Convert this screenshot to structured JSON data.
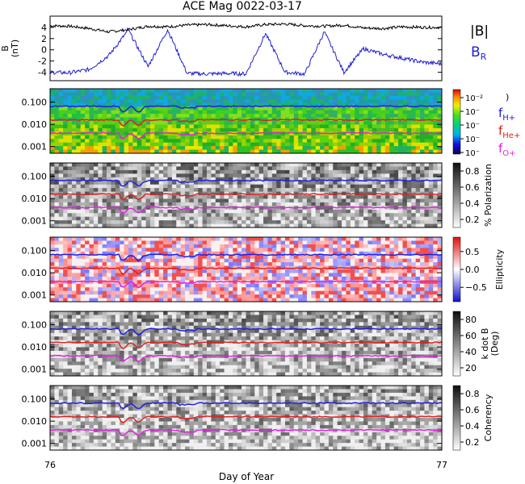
{
  "title": "ACE Mag 0022-03-17",
  "colors": {
    "total_field": "#000000",
    "radial_field": "#1f1fd0",
    "h_plus": "#2020e0",
    "he_plus": "#e02020",
    "o_plus": "#e020e0",
    "axis": "#000000"
  },
  "chart_data": [
    {
      "type": "line",
      "panel": "magnetic-field",
      "ylabel": "B (nT)",
      "ylabel_line1": "B",
      "ylabel_line2": "(nT)",
      "yticks": [
        4,
        2,
        0,
        -2,
        -4
      ],
      "ylim": [
        -5.5,
        6
      ],
      "xlim": [
        76,
        77
      ],
      "legend": [
        "|B|",
        "B"
      ],
      "legend_sub": "R",
      "series": [
        {
          "name": "|B|",
          "x": [
            76.0,
            76.05,
            76.1,
            76.15,
            76.2,
            76.25,
            76.3,
            76.35,
            76.4,
            76.45,
            76.5,
            76.55,
            76.6,
            76.65,
            76.7,
            76.75,
            76.8,
            76.85,
            76.9,
            76.95,
            77.0
          ],
          "values": [
            4.3,
            4.2,
            3.8,
            3.2,
            3.6,
            4.2,
            4.1,
            4.4,
            4.5,
            4.3,
            4.1,
            4.5,
            4.6,
            4.3,
            4.2,
            4.4,
            3.9,
            3.8,
            4.1,
            4.0,
            4.0
          ]
        },
        {
          "name": "B_R",
          "x": [
            76.0,
            76.05,
            76.1,
            76.15,
            76.2,
            76.25,
            76.3,
            76.35,
            76.4,
            76.45,
            76.5,
            76.55,
            76.6,
            76.65,
            76.7,
            76.75,
            76.8,
            76.85,
            76.9,
            76.95,
            77.0
          ],
          "values": [
            -4.0,
            -4.1,
            -3.5,
            -1.0,
            3.5,
            -3.0,
            3.6,
            -4.2,
            -4.3,
            -4.2,
            -4.3,
            2.9,
            -4.0,
            -4.3,
            3.2,
            -4.0,
            0.2,
            -0.8,
            -1.5,
            -2.2,
            -2.5
          ]
        }
      ]
    },
    {
      "type": "heatmap",
      "panel": "power",
      "yticks": [
        "0.100",
        "0.010",
        "0.001"
      ],
      "ytick_values": [
        0.1,
        0.01,
        0.001
      ],
      "colorbar": "rainbow",
      "colorbar_labels": [
        "10⁻²",
        "10⁻",
        "10⁻",
        "10⁻",
        "10⁻"
      ],
      "colorbar_paren": ")",
      "legend": [
        {
          "main": "f",
          "sub": "H+"
        },
        {
          "main": "f",
          "sub": "He+"
        },
        {
          "main": "f",
          "sub": "O+"
        }
      ],
      "lines": {
        "h_plus": 0.065,
        "he_plus": 0.016,
        "o_plus": 0.004
      }
    },
    {
      "type": "heatmap",
      "panel": "polarization",
      "yticks": [
        "0.100",
        "0.010",
        "0.001"
      ],
      "colorbar": "gray",
      "colorbar_ticks": [
        "0.8",
        "0.6",
        "0.4",
        "0.2"
      ],
      "colorbar_ticks_values": [
        0.8,
        0.6,
        0.4,
        0.2
      ],
      "colorbar_range": [
        0.1,
        0.9
      ],
      "colorbar_label": "% Polarization"
    },
    {
      "type": "heatmap",
      "panel": "ellipticity",
      "yticks": [
        "0.100",
        "0.010",
        "0.001"
      ],
      "colorbar": "red-white-blue",
      "colorbar_ticks": [
        "0.5",
        "0.0",
        "−0.5"
      ],
      "colorbar_ticks_values": [
        0.5,
        0.0,
        -0.5
      ],
      "colorbar_range": [
        -0.9,
        0.9
      ],
      "colorbar_label": "Ellipticity"
    },
    {
      "type": "heatmap",
      "panel": "wave-normal-angle",
      "yticks": [
        "0.100",
        "0.010",
        "0.001"
      ],
      "colorbar": "gray",
      "colorbar_ticks": [
        "80",
        "60",
        "40",
        "20"
      ],
      "colorbar_ticks_values": [
        80,
        60,
        40,
        20
      ],
      "colorbar_range": [
        10,
        90
      ],
      "colorbar_label_line1": "k dot B",
      "colorbar_label_line2": "(Deg)"
    },
    {
      "type": "heatmap",
      "panel": "coherency",
      "yticks": [
        "0.100",
        "0.010",
        "0.001"
      ],
      "colorbar": "gray",
      "colorbar_ticks": [
        "0.8",
        "0.6",
        "0.4",
        "0.2"
      ],
      "colorbar_ticks_values": [
        0.8,
        0.6,
        0.4,
        0.2
      ],
      "colorbar_range": [
        0.1,
        0.9
      ],
      "colorbar_label": "Coherency"
    }
  ],
  "xaxis": {
    "ticks": [
      "76",
      "77"
    ],
    "tick_values": [
      76,
      77
    ],
    "label": "Day of Year"
  }
}
